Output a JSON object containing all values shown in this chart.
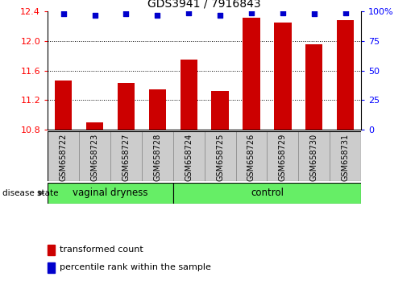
{
  "title": "GDS3941 / 7916843",
  "samples": [
    "GSM658722",
    "GSM658723",
    "GSM658727",
    "GSM658728",
    "GSM658724",
    "GSM658725",
    "GSM658726",
    "GSM658729",
    "GSM658730",
    "GSM658731"
  ],
  "bar_values": [
    11.47,
    10.9,
    11.43,
    11.35,
    11.75,
    11.32,
    12.32,
    12.25,
    11.95,
    12.28
  ],
  "percentile_values": [
    98,
    97,
    98,
    97,
    99,
    97,
    99,
    99,
    98,
    99
  ],
  "bar_color": "#cc0000",
  "percentile_color": "#0000cc",
  "ylim_left": [
    10.8,
    12.4
  ],
  "ylim_right": [
    0,
    100
  ],
  "yticks_left": [
    10.8,
    11.2,
    11.6,
    12.0,
    12.4
  ],
  "yticks_right": [
    0,
    25,
    50,
    75,
    100
  ],
  "grid_values": [
    11.2,
    11.6,
    12.0
  ],
  "group1_label": "vaginal dryness",
  "group2_label": "control",
  "group1_count": 4,
  "group2_count": 6,
  "group_bg_color": "#66ee66",
  "sample_bg_color": "#cccccc",
  "disease_state_label": "disease state",
  "legend_bar_label": "transformed count",
  "legend_pct_label": "percentile rank within the sample",
  "title_fontsize": 10,
  "tick_fontsize": 8,
  "sample_fontsize": 7,
  "group_fontsize": 8.5,
  "legend_fontsize": 8
}
